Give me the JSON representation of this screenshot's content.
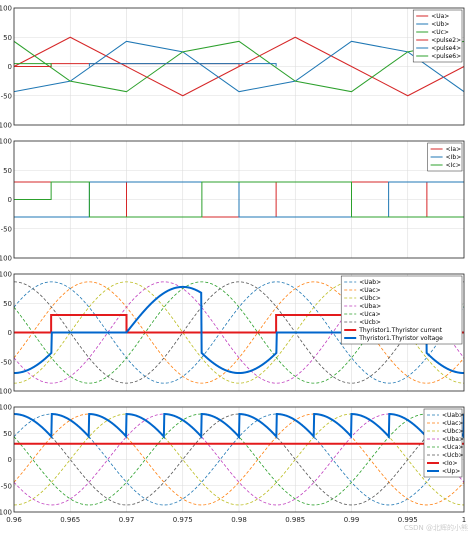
{
  "watermark": "CSDN @北辉的小熊",
  "colors": {
    "red": "#d62728",
    "blue": "#1f77b4",
    "green": "#2ca02c",
    "orange": "#ff7f0e",
    "yellow": "#bcbd22",
    "magenta": "#c03fbf",
    "black_dash": "#555555",
    "thick_red": "#e31a1c",
    "thick_blue": "#0066cc"
  },
  "chart_data": [
    {
      "type": "line",
      "title": "",
      "xlim": [
        0.96,
        1.0
      ],
      "ylim": [
        -100,
        100
      ],
      "yticks": [
        "100",
        "50",
        "0",
        "-50",
        "-100"
      ],
      "grid": true,
      "legend_position": "top-right",
      "series": [
        {
          "name": "<Ua>",
          "color": "red",
          "style": "solid",
          "x": [
            0.96,
            0.965,
            0.97,
            0.975,
            0.98,
            0.985,
            0.99,
            0.995,
            1.0
          ],
          "y": [
            0,
            50,
            0,
            -50,
            0,
            50,
            0,
            -50,
            0
          ]
        },
        {
          "name": "<Ub>",
          "color": "blue",
          "style": "solid",
          "x": [
            0.96,
            0.965,
            0.97,
            0.975,
            0.98,
            0.985,
            0.99,
            0.995,
            1.0
          ],
          "y": [
            -43,
            -25,
            43,
            25,
            -43,
            -25,
            43,
            25,
            -43
          ]
        },
        {
          "name": "<Uc>",
          "color": "green",
          "style": "solid",
          "x": [
            0.96,
            0.965,
            0.97,
            0.975,
            0.98,
            0.985,
            0.99,
            0.995,
            1.0
          ],
          "y": [
            43,
            -25,
            -43,
            25,
            43,
            -25,
            -43,
            25,
            43
          ]
        },
        {
          "name": "<pulse2>",
          "color": "red",
          "style": "solid",
          "x": [
            0.96,
            0.9633,
            0.9633,
            0.98,
            0.98
          ],
          "y": [
            0,
            0,
            5,
            5,
            0
          ]
        },
        {
          "name": "<pulse4>",
          "color": "blue",
          "style": "solid",
          "x": [
            0.9667,
            0.9667,
            0.9833,
            0.9833
          ],
          "y": [
            0,
            5,
            5,
            0
          ]
        },
        {
          "name": "<pulse6>",
          "color": "green",
          "style": "solid",
          "x": [
            0.96,
            0.9633,
            0.9633
          ],
          "y": [
            5,
            5,
            0
          ]
        }
      ]
    },
    {
      "type": "line",
      "title": "",
      "xlim": [
        0.96,
        1.0
      ],
      "ylim": [
        -100,
        100
      ],
      "yticks": [
        "100",
        "50",
        "0",
        "-50",
        "-100"
      ],
      "grid": true,
      "legend_position": "top-right",
      "series": [
        {
          "name": "<Ia>",
          "color": "red",
          "style": "solid",
          "x": [
            0.96,
            0.9633,
            0.9633,
            0.97,
            0.97,
            0.9767,
            0.9767,
            0.9833,
            0.9833,
            0.99,
            0.99,
            0.9967,
            0.9967,
            1.0
          ],
          "y": [
            30,
            30,
            30,
            30,
            -30,
            -30,
            -30,
            -30,
            30,
            30,
            30,
            30,
            -30,
            -30
          ]
        },
        {
          "name": "<Ib>",
          "color": "blue",
          "style": "solid",
          "x": [
            0.96,
            0.9633,
            0.9633,
            0.9667,
            0.9667,
            0.9733,
            0.9733,
            0.98,
            0.98,
            0.9867,
            0.9867,
            0.9933,
            0.9933,
            1.0
          ],
          "y": [
            -30,
            -30,
            -30,
            -30,
            30,
            30,
            30,
            30,
            -30,
            -30,
            -30,
            -30,
            30,
            30
          ]
        },
        {
          "name": "<Ic>",
          "color": "green",
          "style": "solid",
          "x": [
            0.96,
            0.9633,
            0.9633,
            0.9667,
            0.9667,
            0.9767,
            0.9767,
            0.98,
            0.98,
            0.99,
            0.99,
            0.9933,
            0.9933,
            1.0
          ],
          "y": [
            0,
            0,
            30,
            30,
            -30,
            -30,
            30,
            30,
            30,
            30,
            -30,
            -30,
            -30,
            -30
          ]
        }
      ]
    },
    {
      "type": "line",
      "title": "",
      "xlim": [
        0.96,
        1.0
      ],
      "ylim": [
        -100,
        100
      ],
      "yticks": [
        "100",
        "50",
        "0",
        "-50",
        "-100"
      ],
      "grid": true,
      "legend_position": "top-right",
      "series": [
        {
          "name": "<Uab>",
          "color": "blue",
          "style": "dashed",
          "phase_deg": 30
        },
        {
          "name": "<Uac>",
          "color": "orange",
          "style": "dashed",
          "phase_deg": -30
        },
        {
          "name": "<Ubc>",
          "color": "yellow",
          "style": "dashed",
          "phase_deg": -90
        },
        {
          "name": "<Uba>",
          "color": "magenta",
          "style": "dashed",
          "phase_deg": -150
        },
        {
          "name": "<Uca>",
          "color": "green",
          "style": "dashed",
          "phase_deg": 150
        },
        {
          "name": "<Ucb>",
          "color": "black_dash",
          "style": "dashed",
          "phase_deg": 90
        },
        {
          "name": "Thyristor1.Thyristor current",
          "color": "thick_red",
          "style": "thick",
          "x": [
            0.96,
            0.9633,
            0.9633,
            0.97,
            0.97,
            0.9833,
            0.9833,
            0.99,
            0.99,
            1.0
          ],
          "y": [
            0,
            0,
            30,
            30,
            0,
            0,
            30,
            30,
            0,
            0
          ]
        },
        {
          "name": "Thyristor1.Thyristor voltage",
          "color": "thick_blue",
          "style": "thick"
        }
      ],
      "amplitude": 86.6,
      "period": 0.02,
      "firing_delay_deg": 30
    },
    {
      "type": "line",
      "title": "",
      "xlim": [
        0.96,
        1.0
      ],
      "ylim": [
        -100,
        100
      ],
      "yticks": [
        "100",
        "50",
        "0",
        "-50",
        "-100"
      ],
      "xticks": [
        "0.96",
        "0.965",
        "0.97",
        "0.975",
        "0.98",
        "0.985",
        "0.99",
        "0.995",
        "1"
      ],
      "grid": true,
      "legend_position": "top-right",
      "series": [
        {
          "name": "<Uab>",
          "color": "blue",
          "style": "dashed",
          "phase_deg": 30
        },
        {
          "name": "<Uac>",
          "color": "orange",
          "style": "dashed",
          "phase_deg": -30
        },
        {
          "name": "<Ubc>",
          "color": "yellow",
          "style": "dashed",
          "phase_deg": -90
        },
        {
          "name": "<Uba>",
          "color": "magenta",
          "style": "dashed",
          "phase_deg": -150
        },
        {
          "name": "<Uca>",
          "color": "green",
          "style": "dashed",
          "phase_deg": 150
        },
        {
          "name": "<Ucb>",
          "color": "black_dash",
          "style": "dashed",
          "phase_deg": 90
        },
        {
          "name": "<Io>",
          "color": "thick_red",
          "style": "thick",
          "x": [
            0.96,
            1.0
          ],
          "y": [
            30,
            30
          ]
        },
        {
          "name": "<Up>",
          "color": "thick_blue",
          "style": "thick"
        }
      ],
      "amplitude": 86.6,
      "period": 0.02,
      "firing_delay_deg": 30
    }
  ]
}
